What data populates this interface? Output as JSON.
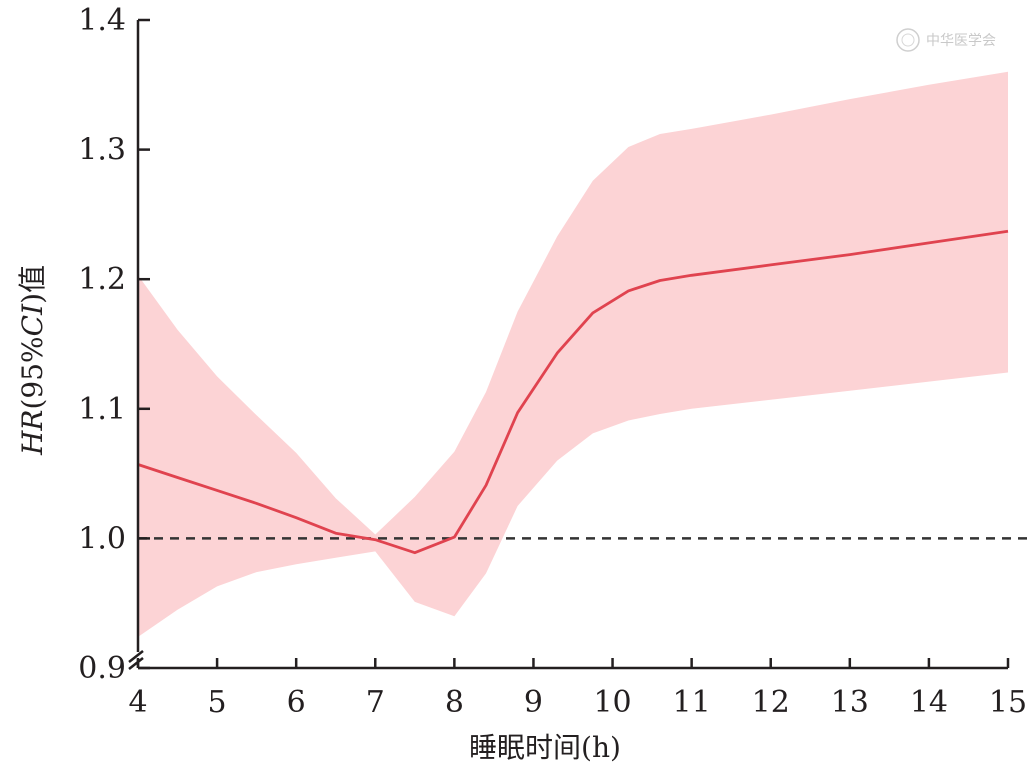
{
  "chart_data": {
    "type": "line",
    "title": "",
    "xlabel": "睡眠时间(h)",
    "ylabel_parts": [
      {
        "text": "HR",
        "italic": true
      },
      {
        "text": "(95%",
        "italic": false
      },
      {
        "text": "CI",
        "italic": true
      },
      {
        "text": ")值",
        "italic": false
      }
    ],
    "xlim": [
      4,
      15
    ],
    "ylim": [
      0.9,
      1.4
    ],
    "y_axis_break": true,
    "grid": false,
    "x_ticks": [
      4,
      5,
      6,
      7,
      8,
      9,
      10,
      11,
      12,
      13,
      14,
      15
    ],
    "x_tick_labels": [
      "4",
      "5",
      "6",
      "7",
      "8",
      "9",
      "10",
      "11",
      "12",
      "13",
      "14",
      "15"
    ],
    "y_ticks": [
      0.9,
      1.0,
      1.1,
      1.2,
      1.3,
      1.4
    ],
    "y_tick_labels": [
      "0.9",
      "1.0",
      "1.1",
      "1.2",
      "1.3",
      "1.4"
    ],
    "reference_line": {
      "y": 1.0,
      "style": "dashed",
      "color": "#333333"
    },
    "series": [
      {
        "color": "#e0434f",
        "band_color": "#fcd3d5",
        "x": [
          4.0,
          4.5,
          5.0,
          5.5,
          6.0,
          6.5,
          7.0,
          7.5,
          8.0,
          8.4,
          8.8,
          9.3,
          9.75,
          10.2,
          10.6,
          11.0,
          12.0,
          13.0,
          14.0,
          15.0
        ],
        "y": [
          1.057,
          1.047,
          1.037,
          1.027,
          1.016,
          1.004,
          0.999,
          0.989,
          1.001,
          1.041,
          1.097,
          1.143,
          1.174,
          1.191,
          1.199,
          1.203,
          1.211,
          1.219,
          1.228,
          1.237
        ],
        "lower": [
          0.924,
          0.945,
          0.963,
          0.974,
          0.98,
          0.985,
          0.99,
          0.951,
          0.94,
          0.973,
          1.025,
          1.06,
          1.081,
          1.091,
          1.096,
          1.1,
          1.107,
          1.114,
          1.121,
          1.128
        ],
        "upper": [
          1.203,
          1.161,
          1.125,
          1.095,
          1.066,
          1.031,
          1.003,
          1.032,
          1.067,
          1.113,
          1.175,
          1.233,
          1.276,
          1.302,
          1.312,
          1.316,
          1.327,
          1.339,
          1.35,
          1.36
        ]
      }
    ]
  },
  "watermark": {
    "text": "中华医学会"
  }
}
